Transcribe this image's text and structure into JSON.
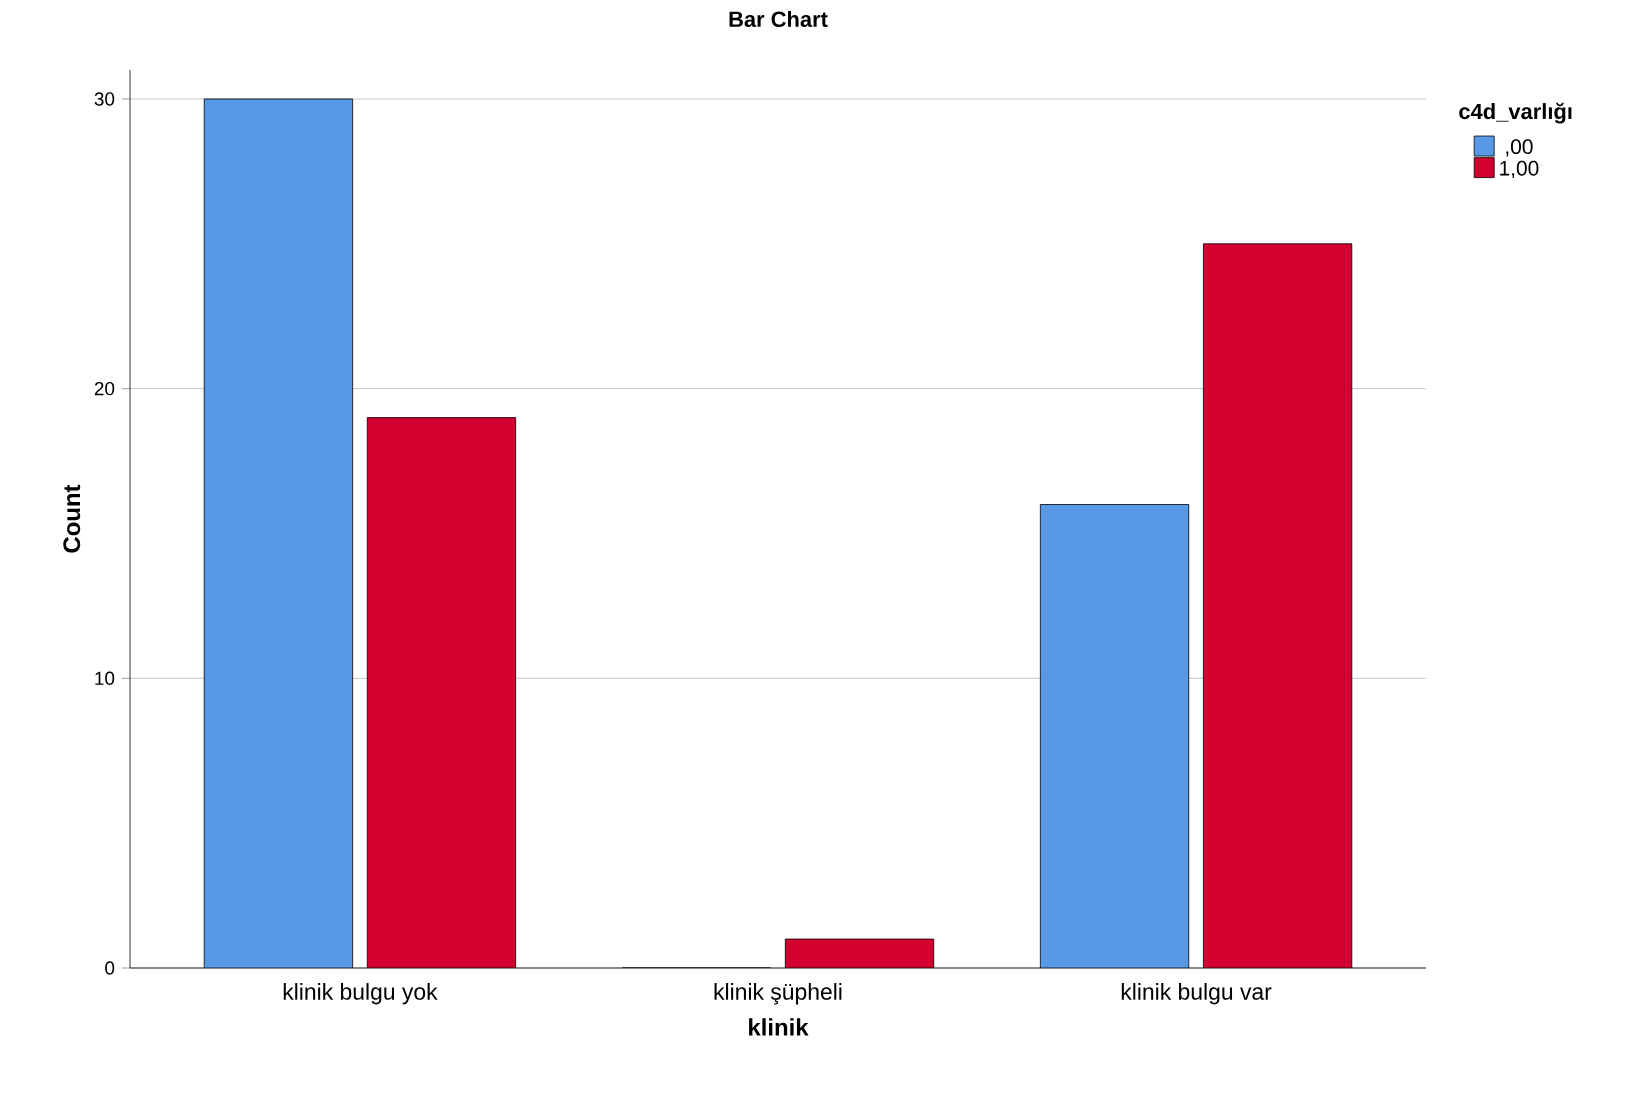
{
  "chart_data": {
    "type": "bar",
    "title": "Bar Chart",
    "xlabel": "klinik",
    "ylabel": "Count",
    "legend_title": "c4d_varlığı",
    "categories": [
      "klinik bulgu yok",
      "klinik şüpheli",
      "klinik bulgu var"
    ],
    "series": [
      {
        "name": ",00",
        "color": "#5799e5",
        "values": [
          30,
          0,
          16
        ]
      },
      {
        "name": "1,00",
        "color": "#d3002f",
        "values": [
          19,
          1,
          25
        ]
      }
    ],
    "ylim": [
      0,
      31
    ],
    "yticks": [
      0,
      10,
      20,
      30
    ],
    "grid": "y",
    "legend": "top right"
  }
}
